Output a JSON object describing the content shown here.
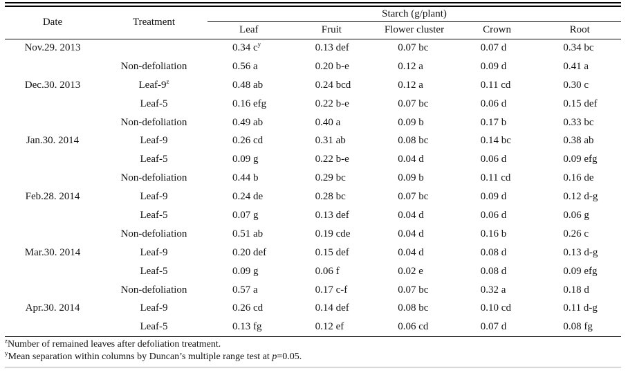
{
  "table": {
    "header": {
      "date": "Date",
      "treatment": "Treatment",
      "group": "Starch (g/plant)",
      "columns": [
        "Leaf",
        "Fruit",
        "Flower cluster",
        "Crown",
        "Root"
      ]
    },
    "rows": [
      {
        "date": "Nov.29. 2013",
        "treatment": "",
        "values": [
          "0.34 c^y",
          "0.13 def",
          "0.07 bc",
          "0.07 d",
          "0.34 bc"
        ]
      },
      {
        "date": "",
        "treatment": "Non-defoliation",
        "values": [
          "0.56 a",
          "0.20 b-e",
          "0.12 a",
          "0.09 d",
          "0.41 a"
        ]
      },
      {
        "date": "Dec.30. 2013",
        "treatment": "Leaf-9^z",
        "values": [
          "0.48 ab",
          "0.24 bcd",
          "0.12 a",
          "0.11 cd",
          "0.30 c"
        ]
      },
      {
        "date": "",
        "treatment": "Leaf-5",
        "values": [
          "0.16 efg",
          "0.22 b-e",
          "0.07 bc",
          "0.06 d",
          "0.15 def"
        ]
      },
      {
        "date": "",
        "treatment": "Non-defoliation",
        "values": [
          "0.49 ab",
          "0.40 a",
          "0.09 b",
          "0.17 b",
          "0.33 bc"
        ]
      },
      {
        "date": "Jan.30. 2014",
        "treatment": "Leaf-9",
        "values": [
          "0.26 cd",
          "0.31 ab",
          "0.08 bc",
          "0.14 bc",
          "0.38 ab"
        ]
      },
      {
        "date": "",
        "treatment": "Leaf-5",
        "values": [
          "0.09 g",
          "0.22 b-e",
          "0.04 d",
          "0.06 d",
          "0.09 efg"
        ]
      },
      {
        "date": "",
        "treatment": "Non-defoliation",
        "values": [
          "0.44 b",
          "0.29 bc",
          "0.09 b",
          "0.11 cd",
          "0.16 de"
        ]
      },
      {
        "date": "Feb.28. 2014",
        "treatment": "Leaf-9",
        "values": [
          "0.24 de",
          "0.28 bc",
          "0.07 bc",
          "0.09 d",
          "0.12 d-g"
        ]
      },
      {
        "date": "",
        "treatment": "Leaf-5",
        "values": [
          "0.07 g",
          "0.13 def",
          "0.04 d",
          "0.06 d",
          "0.06 g"
        ]
      },
      {
        "date": "",
        "treatment": "Non-defoliation",
        "values": [
          "0.51 ab",
          "0.19 cde",
          "0.04 d",
          "0.16 b",
          "0.26 c"
        ]
      },
      {
        "date": "Mar.30. 2014",
        "treatment": "Leaf-9",
        "values": [
          "0.20 def",
          "0.15 def",
          "0.04 d",
          "0.08 d",
          "0.13 d-g"
        ]
      },
      {
        "date": "",
        "treatment": "Leaf-5",
        "values": [
          "0.09 g",
          "0.06 f",
          "0.02 e",
          "0.08 d",
          "0.09 efg"
        ]
      },
      {
        "date": "",
        "treatment": "Non-defoliation",
        "values": [
          "0.57 a",
          "0.17 c-f",
          "0.07 bc",
          "0.32 a",
          "0.18 d"
        ]
      },
      {
        "date": "Apr.30. 2014",
        "treatment": "Leaf-9",
        "values": [
          "0.26 cd",
          "0.14 def",
          "0.08 bc",
          "0.10 cd",
          "0.11 d-g"
        ]
      },
      {
        "date": "",
        "treatment": "Leaf-5",
        "values": [
          "0.13 fg",
          "0.12 ef",
          "0.06 cd",
          "0.07 d",
          "0.08 fg"
        ]
      }
    ]
  },
  "footnotes": [
    {
      "sup": "z",
      "pre": "Number of remained leaves after defoliation treatment.",
      "em": "",
      "post": ""
    },
    {
      "sup": "y",
      "pre": "Mean separation within columns by Duncan’s multiple range test at ",
      "em": "p",
      "post": "=0.05."
    }
  ]
}
